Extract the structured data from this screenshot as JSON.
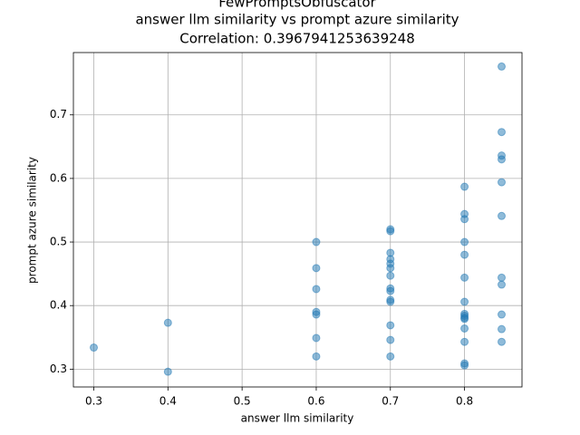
{
  "chart_data": {
    "type": "scatter",
    "title": [
      "FewPromptsObfuscator",
      "answer llm similarity vs prompt azure similarity",
      "Correlation: 0.3967941253639248"
    ],
    "x_label": "answer llm similarity",
    "y_label": "prompt azure similarity",
    "x": [
      0.3,
      0.4,
      0.4,
      0.6,
      0.6,
      0.6,
      0.6,
      0.6,
      0.6,
      0.6,
      0.7,
      0.7,
      0.7,
      0.7,
      0.7,
      0.7,
      0.7,
      0.7,
      0.7,
      0.7,
      0.7,
      0.7,
      0.7,
      0.7,
      0.8,
      0.8,
      0.8,
      0.8,
      0.8,
      0.8,
      0.8,
      0.8,
      0.8,
      0.8,
      0.8,
      0.8,
      0.8,
      0.8,
      0.8,
      0.85,
      0.85,
      0.85,
      0.85,
      0.85,
      0.85,
      0.85,
      0.85,
      0.85,
      0.85,
      0.85
    ],
    "values": [
      0.334,
      0.373,
      0.296,
      0.5,
      0.459,
      0.426,
      0.39,
      0.386,
      0.349,
      0.32,
      0.52,
      0.517,
      0.483,
      0.473,
      0.466,
      0.459,
      0.447,
      0.427,
      0.423,
      0.409,
      0.406,
      0.369,
      0.346,
      0.32,
      0.587,
      0.544,
      0.536,
      0.5,
      0.48,
      0.444,
      0.406,
      0.387,
      0.384,
      0.381,
      0.379,
      0.364,
      0.343,
      0.309,
      0.306,
      0.776,
      0.673,
      0.636,
      0.63,
      0.594,
      0.541,
      0.444,
      0.433,
      0.386,
      0.363,
      0.343
    ],
    "color": "#1f77b4",
    "xlim": [
      0.2725,
      0.8775
    ],
    "ylim": [
      0.272,
      0.798
    ],
    "xticks": [
      0.3,
      0.4,
      0.5,
      0.6,
      0.7,
      0.8
    ],
    "yticks": [
      0.3,
      0.4,
      0.5,
      0.6,
      0.7
    ],
    "grid": true
  }
}
